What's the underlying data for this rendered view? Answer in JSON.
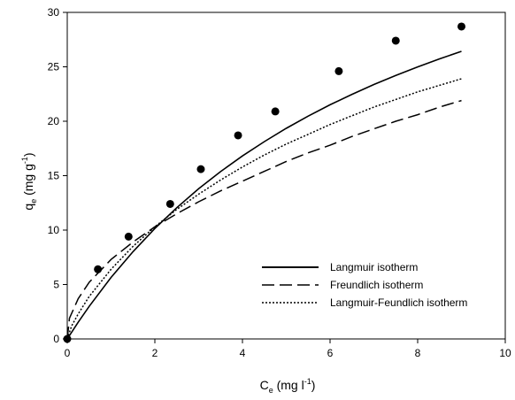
{
  "chart_data": {
    "type": "scatter",
    "xlim": [
      0,
      10
    ],
    "ylim": [
      0,
      30
    ],
    "x_ticks": [
      "0",
      "2",
      "4",
      "6",
      "8",
      "10"
    ],
    "y_ticks": [
      "0",
      "5",
      "10",
      "15",
      "20",
      "25",
      "30"
    ],
    "x_tick_values": [
      0,
      2,
      4,
      6,
      8,
      10
    ],
    "y_tick_values": [
      0,
      5,
      10,
      15,
      20,
      25,
      30
    ],
    "xlabel": {
      "main": "C",
      "sub": "e",
      "rest": " (mg l",
      "sup": "-1",
      "close": ")"
    },
    "ylabel": {
      "main": "q",
      "sub": "e",
      "rest": " (mg g",
      "sup": "-1",
      "close": ")"
    },
    "legend_position": "lower-right",
    "points": {
      "x": [
        0.0,
        0.7,
        1.4,
        2.35,
        3.05,
        3.9,
        4.75,
        6.2,
        7.5,
        9.0
      ],
      "y": [
        0.0,
        6.4,
        9.4,
        12.4,
        15.6,
        18.7,
        20.9,
        24.6,
        27.4,
        28.7
      ],
      "color": "#000000"
    },
    "series": [
      {
        "name": "Langmuir isotherm",
        "dash": "solid",
        "x": [
          0,
          0.25,
          0.5,
          1,
          1.5,
          2,
          2.5,
          3,
          3.5,
          4,
          4.5,
          5,
          5.5,
          6,
          6.5,
          7,
          7.5,
          8,
          8.5,
          9
        ],
        "y": [
          0,
          1.54,
          2.99,
          5.65,
          8.02,
          10.15,
          12.06,
          13.8,
          15.37,
          16.81,
          18.13,
          19.35,
          20.47,
          21.51,
          22.47,
          23.37,
          24.21,
          24.99,
          25.73,
          26.42
        ]
      },
      {
        "name": "Freundlich isotherm",
        "dash": "dashed",
        "x": [
          0,
          0.05,
          0.25,
          0.5,
          1,
          1.5,
          2,
          2.5,
          3,
          3.5,
          4,
          4.5,
          5,
          5.5,
          6,
          6.5,
          7,
          7.5,
          8,
          8.5,
          9
        ],
        "y": [
          0,
          1.9,
          3.7,
          5.2,
          7.3,
          8.9,
          10.3,
          11.5,
          12.6,
          13.6,
          14.5,
          15.4,
          16.3,
          17.1,
          17.8,
          18.6,
          19.3,
          20.0,
          20.6,
          21.3,
          21.9
        ]
      },
      {
        "name": "Langmuir-Feundlich isotherm",
        "dash": "dotted",
        "x": [
          0,
          0.1,
          0.25,
          0.5,
          1,
          1.5,
          2,
          2.5,
          3,
          3.5,
          4,
          4.5,
          5,
          5.5,
          6,
          6.5,
          7,
          7.5,
          8,
          8.5,
          9
        ],
        "y": [
          0,
          1.2,
          2.3,
          3.9,
          6.4,
          8.5,
          10.3,
          11.9,
          13.3,
          14.6,
          15.8,
          16.9,
          17.9,
          18.8,
          19.7,
          20.5,
          21.3,
          22.0,
          22.7,
          23.3,
          23.9
        ]
      }
    ]
  }
}
